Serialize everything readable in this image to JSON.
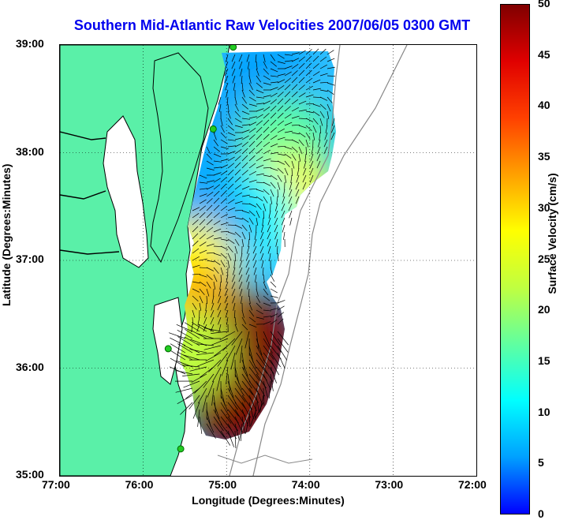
{
  "title": "Southern Mid-Atlantic Raw Velocities 2007/06/05 0300 GMT",
  "xlabel": "Longitude (Degrees:Minutes)",
  "ylabel": "Latitude (Degrees:Minutes)",
  "x_ticks": [
    "77:00",
    "76:00",
    "75:00",
    "74:00",
    "73:00",
    "72:00"
  ],
  "y_ticks": [
    "39:00",
    "38:00",
    "37:00",
    "36:00",
    "35:00"
  ],
  "colorbar": {
    "label": "Surface Velocity (cm/s)",
    "ticks": [
      "50",
      "45",
      "40",
      "35",
      "30",
      "25",
      "20",
      "15",
      "10",
      "5",
      "0"
    ],
    "colormap": [
      "#0000ff",
      "#00a0ff",
      "#00ffff",
      "#60ffa0",
      "#c0ff40",
      "#ffff00",
      "#ffa000",
      "#ff4000",
      "#e00000",
      "#800000"
    ]
  },
  "colors": {
    "land": "#5af0a8",
    "title": "#0000ee",
    "coastline": "#000000",
    "bathymetry": "#888888",
    "stations": "#22cc22"
  },
  "stations": [
    {
      "lon": -74.92,
      "lat": 38.98
    },
    {
      "lon": -75.16,
      "lat": 38.22
    },
    {
      "lon": -75.7,
      "lat": 36.18
    },
    {
      "lon": -75.55,
      "lat": 35.25
    }
  ],
  "chart_data": {
    "type": "heatmap",
    "title": "Southern Mid-Atlantic Raw Velocities 2007/06/05 0300 GMT",
    "xlabel": "Longitude (Degrees:Minutes)",
    "ylabel": "Latitude (Degrees:Minutes)",
    "xlim": [
      -77,
      -72
    ],
    "ylim": [
      35,
      39
    ],
    "grid": true,
    "colorbar_range": [
      0,
      50
    ],
    "colorbar_label": "Surface Velocity (cm/s)",
    "regions": [
      {
        "lon": -74.55,
        "lat": 38.65,
        "speed": 6
      },
      {
        "lon": -74.9,
        "lat": 38.1,
        "speed": 8
      },
      {
        "lon": -74.3,
        "lat": 38.1,
        "speed": 15
      },
      {
        "lon": -74.25,
        "lat": 37.55,
        "speed": 25
      },
      {
        "lon": -74.7,
        "lat": 37.4,
        "speed": 12
      },
      {
        "lon": -75.2,
        "lat": 37.3,
        "speed": 8
      },
      {
        "lon": -75.45,
        "lat": 36.95,
        "speed": 28
      },
      {
        "lon": -75.3,
        "lat": 36.5,
        "speed": 32
      },
      {
        "lon": -74.7,
        "lat": 36.25,
        "speed": 48
      },
      {
        "lon": -74.9,
        "lat": 35.65,
        "speed": 47
      },
      {
        "lon": -75.5,
        "lat": 36.15,
        "speed": 22
      }
    ]
  }
}
